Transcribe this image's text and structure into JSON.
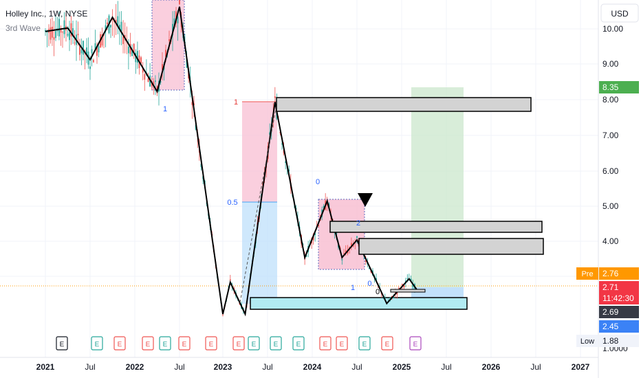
{
  "header": {
    "symbol": "Holley Inc., 1W, NYSE",
    "indicator": "3rd Wave"
  },
  "currency_button": "USD",
  "colors": {
    "up": "#26a69a",
    "down": "#ef5350",
    "wave_line": "#000000",
    "green_zone": "#c8e6c9",
    "pink_zone": "#f8bbd0",
    "blue_zone": "#bbdefb",
    "cyan_box": "#b2ebf2",
    "gray_box": "#d3d3d3",
    "price_green": "#4caf50",
    "price_orange": "#ff9800",
    "price_red": "#f23645",
    "price_dark": "#363a45",
    "price_blue": "#3b82f6",
    "earnings_red": "#ef5350",
    "earnings_green": "#26a69a",
    "earnings_purple": "#ab47bc"
  },
  "chart_data": {
    "type": "line",
    "title": "Holley Inc., 1W, NYSE",
    "x_ticks": [
      "2021",
      "Jul",
      "2022",
      "Jul",
      "2023",
      "Jul",
      "2024",
      "Jul",
      "2025",
      "Jul",
      "2026",
      "Jul",
      "2027"
    ],
    "y_ticks": [
      "10.00",
      "9.00",
      "8.00",
      "7.00",
      "6.00",
      "5.00",
      "4.00",
      "1.0000"
    ],
    "ylim": [
      0.3,
      10.5
    ],
    "series": [
      {
        "values": [
          {
            "x": "2021-01",
            "y": 10.0
          },
          {
            "x": "2021-04",
            "y": 10.1
          },
          {
            "x": "2021-07",
            "y": 9.2
          },
          {
            "x": "2021-10",
            "y": 10.4
          },
          {
            "x": "2022-04",
            "y": 8.3
          },
          {
            "x": "2022-07",
            "y": 10.7
          },
          {
            "x": "2023-01",
            "y": 2.0
          },
          {
            "x": "2023-02",
            "y": 2.9
          },
          {
            "x": "2023-04",
            "y": 2.0
          },
          {
            "x": "2023-08",
            "y": 8.0
          },
          {
            "x": "2023-12",
            "y": 3.6
          },
          {
            "x": "2024-03",
            "y": 5.2
          },
          {
            "x": "2024-05",
            "y": 3.6
          },
          {
            "x": "2024-07",
            "y": 4.1
          },
          {
            "x": "2024-11",
            "y": 2.3
          },
          {
            "x": "2025-02",
            "y": 3.0
          },
          {
            "x": "2025-03",
            "y": 2.7
          }
        ]
      }
    ],
    "price_labels": [
      {
        "label": "",
        "value": "8.35",
        "kind": "target"
      },
      {
        "label": "Pre",
        "value": "2.76",
        "kind": "premarket"
      },
      {
        "label": "",
        "value": "2.71",
        "sub": "11:42:30",
        "kind": "last"
      },
      {
        "label": "",
        "value": "2.69",
        "kind": "prev"
      },
      {
        "label": "",
        "value": "2.45",
        "kind": "stop"
      },
      {
        "label": "Low",
        "value": "1.88",
        "kind": "low"
      }
    ],
    "annotations": [
      {
        "text": "1",
        "color": "#2962ff"
      },
      {
        "text": "1",
        "color": "#e53935"
      },
      {
        "text": "0.5",
        "color": "#2962ff"
      },
      {
        "text": "0",
        "color": "#2962ff"
      },
      {
        "text": "2",
        "color": "#2962ff"
      },
      {
        "text": "1",
        "color": "#2962ff"
      },
      {
        "text": "0.",
        "color": "#2962ff"
      },
      {
        "text": "0",
        "color": "#000000"
      }
    ],
    "earnings_markers": [
      {
        "text": "E",
        "kind": "neutral"
      },
      {
        "text": "E",
        "kind": "green"
      },
      {
        "text": "E",
        "kind": "red"
      },
      {
        "text": "E",
        "kind": "red"
      },
      {
        "text": "E",
        "kind": "green"
      },
      {
        "text": "E",
        "kind": "red"
      },
      {
        "text": "E",
        "kind": "red"
      },
      {
        "text": "E",
        "kind": "red"
      },
      {
        "text": "E",
        "kind": "green"
      },
      {
        "text": "E",
        "kind": "green"
      },
      {
        "text": "E",
        "kind": "green"
      },
      {
        "text": "E",
        "kind": "red"
      },
      {
        "text": "E",
        "kind": "red"
      },
      {
        "text": "E",
        "kind": "green"
      },
      {
        "text": "E",
        "kind": "red"
      },
      {
        "text": "E",
        "kind": "purple"
      }
    ]
  }
}
